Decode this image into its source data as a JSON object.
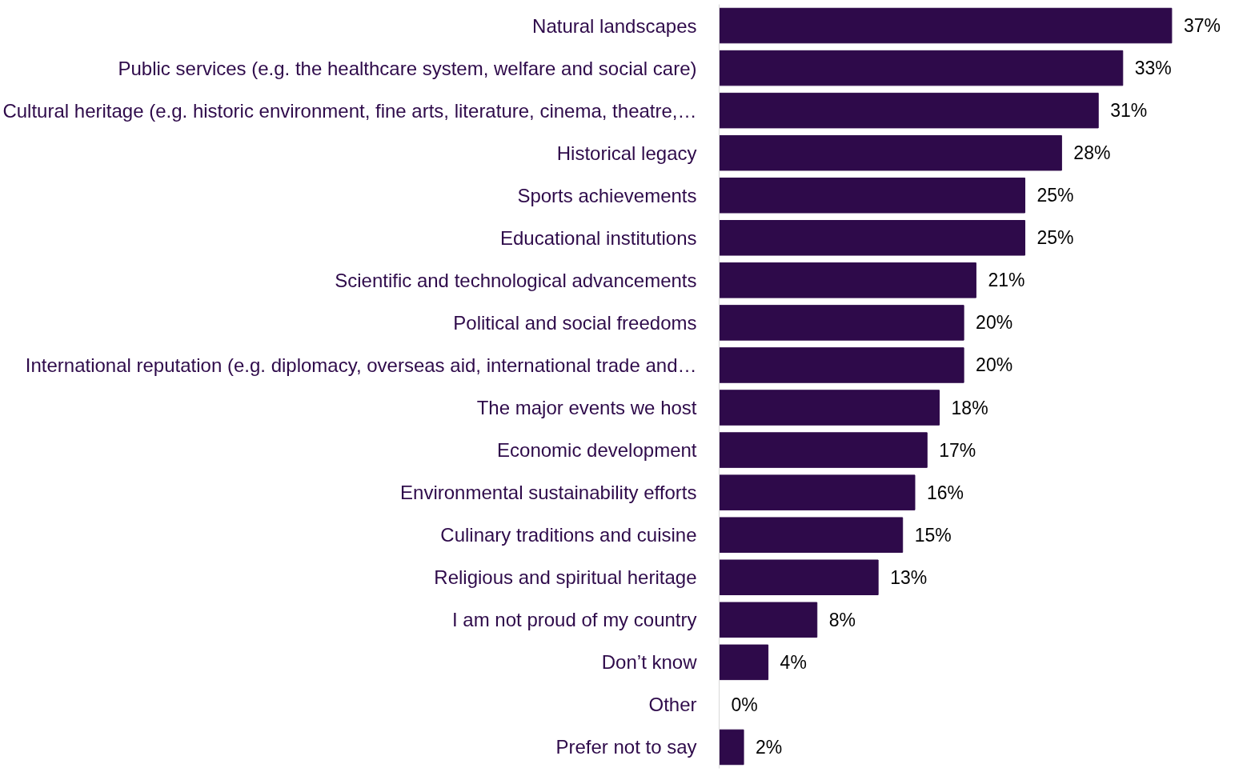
{
  "chart_data": {
    "type": "bar",
    "orientation": "horizontal",
    "color": "#2e0a4a",
    "categories": [
      "Natural landscapes",
      "Public services (e.g. the healthcare system, welfare and social care)",
      "Cultural heritage (e.g. historic environment, fine arts, literature, cinema, theatre,…",
      "Historical legacy",
      "Sports achievements",
      "Educational institutions",
      "Scientific and technological advancements",
      "Political and social freedoms",
      "International reputation (e.g. diplomacy, overseas aid, international trade and…",
      "The major events we host",
      "Economic development",
      "Environmental sustainability efforts",
      "Culinary traditions and cuisine",
      "Religious and spiritual heritage",
      "I am not proud of my country",
      "Don’t know",
      "Other",
      "Prefer not to say"
    ],
    "values": [
      37,
      33,
      31,
      28,
      25,
      25,
      21,
      20,
      20,
      18,
      17,
      16,
      15,
      13,
      8,
      4,
      0,
      2
    ],
    "value_labels": [
      "37%",
      "33%",
      "31%",
      "28%",
      "25%",
      "25%",
      "21%",
      "20%",
      "20%",
      "18%",
      "17%",
      "16%",
      "15%",
      "13%",
      "8%",
      "4%",
      "0%",
      "2%"
    ],
    "grid": false
  }
}
